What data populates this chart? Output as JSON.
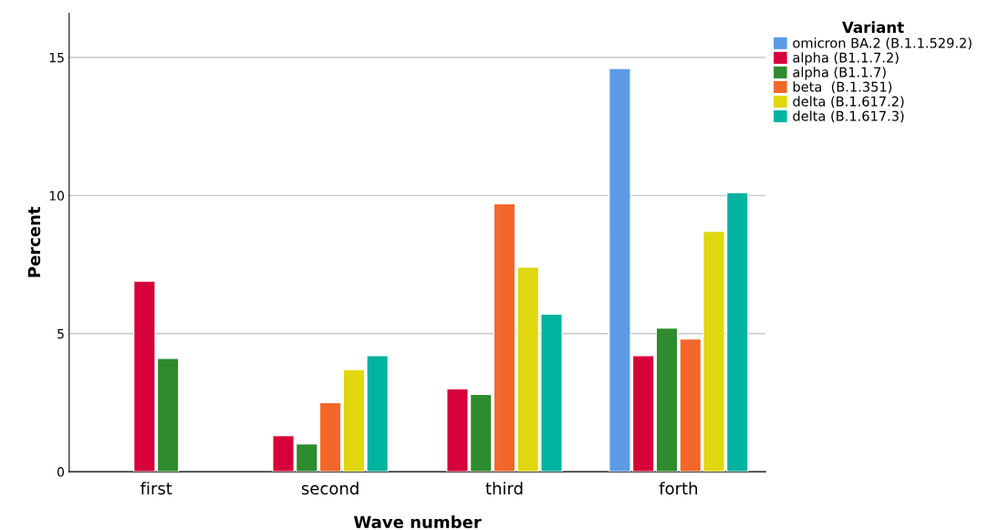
{
  "chart_data": {
    "type": "bar",
    "xlabel": "Wave number",
    "ylabel": "Percent",
    "legend_title": "Variant",
    "legend": "top right",
    "grid": "y",
    "categories": [
      "first",
      "second",
      "third",
      "forth"
    ],
    "ylim": [
      0,
      16.6
    ],
    "yticks": [
      0,
      5,
      10,
      15
    ],
    "series": [
      {
        "name": "omicron BA.2 (B.1.1.529.2)",
        "color": "#5b9be6",
        "values": [
          null,
          null,
          null,
          14.6
        ]
      },
      {
        "name": "alpha (B1.1.7.2)",
        "color": "#d6003a",
        "values": [
          6.9,
          1.3,
          3.0,
          4.2
        ]
      },
      {
        "name": "alpha (B1.1.7)",
        "color": "#2e8b2e",
        "values": [
          4.1,
          1.0,
          2.8,
          5.2
        ]
      },
      {
        "name": "beta  (B.1.351)",
        "color": "#f2672a",
        "values": [
          null,
          2.5,
          9.7,
          4.8
        ]
      },
      {
        "name": "delta (B.1.617.2)",
        "color": "#e0d70f",
        "values": [
          null,
          3.7,
          7.4,
          8.7
        ]
      },
      {
        "name": "delta (B.1.617.3)",
        "color": "#00b3a0",
        "values": [
          null,
          4.2,
          5.7,
          10.1
        ]
      }
    ]
  }
}
